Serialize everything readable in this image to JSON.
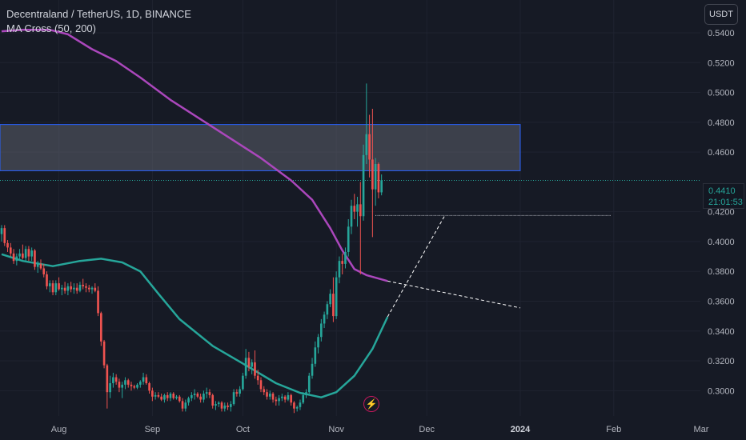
{
  "header": {
    "symbol_line": "Decentraland / TetherUS, 1D, BINANCE",
    "indicator_line": "MA Cross (50, 200)",
    "currency": "USDT"
  },
  "last_price": {
    "value": "0.4410",
    "countdown": "21:01:53"
  },
  "event_icon": "lightning-bolt-icon",
  "colors": {
    "background": "#161a25",
    "up": "#26a69a",
    "down": "#ef5350",
    "ma50": "#26a69a",
    "ma200": "#ab47bc",
    "zone_fill": "#5d606b",
    "zone_border": "#2962ff"
  },
  "chart_data": {
    "type": "candlestick",
    "y_axis": {
      "range": [
        0.283,
        0.562
      ],
      "ticks": [
        "0.5400",
        "0.5200",
        "0.5000",
        "0.4800",
        "0.4600",
        "0.4200",
        "0.4000",
        "0.3800",
        "0.3600",
        "0.3400",
        "0.3200",
        "0.3000"
      ],
      "tick_values": [
        0.54,
        0.52,
        0.5,
        0.48,
        0.46,
        0.42,
        0.4,
        0.38,
        0.36,
        0.34,
        0.32,
        0.3
      ]
    },
    "x_axis": {
      "labels": [
        "Aug",
        "Sep",
        "Oct",
        "Nov",
        "Dec",
        "2024",
        "Feb",
        "Mar"
      ],
      "label_dates": [
        "2023-08-01",
        "2023-09-01",
        "2023-10-01",
        "2023-11-01",
        "2023-12-01",
        "2024-01-01",
        "2024-02-01",
        "2024-03-01"
      ],
      "start_date": "2023-07-13",
      "end_date": "2024-03-01"
    },
    "zone": {
      "from_date": "2023-07-13",
      "to_date": "2024-01-01",
      "low": 0.4475,
      "high": 0.4785
    },
    "last_price_line": 0.441,
    "horizontal_ray": {
      "from_date": "2023-11-14",
      "to_date": "2024-01-31",
      "price": 0.4175
    },
    "projections": [
      {
        "name": "ma50-projection",
        "from": [
          "2023-11-18",
          0.3495
        ],
        "to": [
          "2023-12-07",
          0.4175
        ]
      },
      {
        "name": "ma200-projection",
        "from": [
          "2023-11-18",
          0.3735
        ],
        "to": [
          "2024-01-01",
          0.3555
        ]
      }
    ],
    "series": [
      {
        "name": "MA 200",
        "color": "#ab47bc",
        "points": [
          [
            "2023-07-13",
            0.541
          ],
          [
            "2023-07-20",
            0.542
          ],
          [
            "2023-07-29",
            0.542
          ],
          [
            "2023-08-04",
            0.539
          ],
          [
            "2023-08-12",
            0.529
          ],
          [
            "2023-08-20",
            0.521
          ],
          [
            "2023-08-28",
            0.51
          ],
          [
            "2023-09-07",
            0.495
          ],
          [
            "2023-09-17",
            0.482
          ],
          [
            "2023-09-27",
            0.469
          ],
          [
            "2023-10-07",
            0.456
          ],
          [
            "2023-10-17",
            0.441
          ],
          [
            "2023-10-24",
            0.428
          ],
          [
            "2023-10-30",
            0.409
          ],
          [
            "2023-11-03",
            0.394
          ],
          [
            "2023-11-07",
            0.3815
          ],
          [
            "2023-11-11",
            0.3775
          ],
          [
            "2023-11-18",
            0.3735
          ]
        ]
      },
      {
        "name": "MA 50",
        "color": "#26a69a",
        "points": [
          [
            "2023-07-13",
            0.3915
          ],
          [
            "2023-07-20",
            0.387
          ],
          [
            "2023-07-30",
            0.3835
          ],
          [
            "2023-08-08",
            0.387
          ],
          [
            "2023-08-15",
            0.3885
          ],
          [
            "2023-08-22",
            0.386
          ],
          [
            "2023-08-28",
            0.38
          ],
          [
            "2023-09-03",
            0.365
          ],
          [
            "2023-09-10",
            0.348
          ],
          [
            "2023-09-21",
            0.33
          ],
          [
            "2023-10-02",
            0.317
          ],
          [
            "2023-10-12",
            0.305
          ],
          [
            "2023-10-20",
            0.2985
          ],
          [
            "2023-10-27",
            0.2955
          ],
          [
            "2023-11-01",
            0.299
          ],
          [
            "2023-11-07",
            0.31
          ],
          [
            "2023-11-13",
            0.328
          ],
          [
            "2023-11-18",
            0.3495
          ]
        ]
      }
    ],
    "candles": [
      [
        "2023-07-13",
        0.405,
        0.411,
        0.4,
        0.409
      ],
      [
        "2023-07-14",
        0.409,
        0.411,
        0.397,
        0.399
      ],
      [
        "2023-07-15",
        0.399,
        0.401,
        0.393,
        0.396
      ],
      [
        "2023-07-16",
        0.396,
        0.399,
        0.39,
        0.392
      ],
      [
        "2023-07-17",
        0.392,
        0.395,
        0.385,
        0.387
      ],
      [
        "2023-07-18",
        0.387,
        0.392,
        0.384,
        0.39
      ],
      [
        "2023-07-19",
        0.39,
        0.395,
        0.387,
        0.392
      ],
      [
        "2023-07-20",
        0.392,
        0.398,
        0.388,
        0.389
      ],
      [
        "2023-07-21",
        0.389,
        0.397,
        0.386,
        0.395
      ],
      [
        "2023-07-22",
        0.395,
        0.397,
        0.387,
        0.39
      ],
      [
        "2023-07-23",
        0.39,
        0.396,
        0.387,
        0.394
      ],
      [
        "2023-07-24",
        0.394,
        0.395,
        0.381,
        0.383
      ],
      [
        "2023-07-25",
        0.383,
        0.387,
        0.379,
        0.385
      ],
      [
        "2023-07-26",
        0.385,
        0.388,
        0.381,
        0.382
      ],
      [
        "2023-07-27",
        0.382,
        0.385,
        0.376,
        0.378
      ],
      [
        "2023-07-28",
        0.378,
        0.38,
        0.368,
        0.37
      ],
      [
        "2023-07-29",
        0.37,
        0.374,
        0.366,
        0.372
      ],
      [
        "2023-07-30",
        0.372,
        0.374,
        0.364,
        0.366
      ],
      [
        "2023-07-31",
        0.366,
        0.374,
        0.364,
        0.372
      ],
      [
        "2023-08-01",
        0.372,
        0.376,
        0.367,
        0.368
      ],
      [
        "2023-08-02",
        0.368,
        0.371,
        0.364,
        0.369
      ],
      [
        "2023-08-03",
        0.369,
        0.373,
        0.365,
        0.367
      ],
      [
        "2023-08-04",
        0.367,
        0.372,
        0.364,
        0.37
      ],
      [
        "2023-08-05",
        0.37,
        0.373,
        0.366,
        0.368
      ],
      [
        "2023-08-06",
        0.368,
        0.372,
        0.365,
        0.369
      ],
      [
        "2023-08-07",
        0.369,
        0.372,
        0.365,
        0.367
      ],
      [
        "2023-08-08",
        0.367,
        0.373,
        0.366,
        0.371
      ],
      [
        "2023-08-09",
        0.371,
        0.375,
        0.368,
        0.37
      ],
      [
        "2023-08-10",
        0.37,
        0.372,
        0.366,
        0.369
      ],
      [
        "2023-08-11",
        0.369,
        0.371,
        0.366,
        0.368
      ],
      [
        "2023-08-12",
        0.368,
        0.37,
        0.365,
        0.369
      ],
      [
        "2023-08-13",
        0.369,
        0.372,
        0.366,
        0.367
      ],
      [
        "2023-08-14",
        0.367,
        0.37,
        0.35,
        0.352
      ],
      [
        "2023-08-15",
        0.352,
        0.353,
        0.33,
        0.333
      ],
      [
        "2023-08-16",
        0.333,
        0.334,
        0.315,
        0.317
      ],
      [
        "2023-08-17",
        0.317,
        0.318,
        0.288,
        0.299
      ],
      [
        "2023-08-18",
        0.299,
        0.31,
        0.295,
        0.305
      ],
      [
        "2023-08-19",
        0.305,
        0.312,
        0.302,
        0.309
      ],
      [
        "2023-08-20",
        0.309,
        0.311,
        0.304,
        0.306
      ],
      [
        "2023-08-21",
        0.306,
        0.308,
        0.299,
        0.302
      ],
      [
        "2023-08-22",
        0.302,
        0.306,
        0.295,
        0.304
      ],
      [
        "2023-08-23",
        0.304,
        0.309,
        0.301,
        0.307
      ],
      [
        "2023-08-24",
        0.307,
        0.308,
        0.302,
        0.304
      ],
      [
        "2023-08-25",
        0.304,
        0.306,
        0.3,
        0.303
      ],
      [
        "2023-08-26",
        0.303,
        0.304,
        0.301,
        0.302
      ],
      [
        "2023-08-27",
        0.302,
        0.305,
        0.301,
        0.304
      ],
      [
        "2023-08-28",
        0.304,
        0.307,
        0.302,
        0.306
      ],
      [
        "2023-08-29",
        0.306,
        0.312,
        0.304,
        0.309
      ],
      [
        "2023-08-30",
        0.309,
        0.311,
        0.304,
        0.305
      ],
      [
        "2023-08-31",
        0.305,
        0.306,
        0.298,
        0.3
      ],
      [
        "2023-09-01",
        0.3,
        0.302,
        0.293,
        0.296
      ],
      [
        "2023-09-02",
        0.296,
        0.299,
        0.294,
        0.297
      ],
      [
        "2023-09-03",
        0.297,
        0.299,
        0.295,
        0.296
      ],
      [
        "2023-09-04",
        0.296,
        0.298,
        0.293,
        0.294
      ],
      [
        "2023-09-05",
        0.294,
        0.298,
        0.292,
        0.297
      ],
      [
        "2023-09-06",
        0.297,
        0.299,
        0.293,
        0.295
      ],
      [
        "2023-09-07",
        0.295,
        0.299,
        0.293,
        0.298
      ],
      [
        "2023-09-08",
        0.298,
        0.299,
        0.294,
        0.295
      ],
      [
        "2023-09-09",
        0.295,
        0.297,
        0.294,
        0.296
      ],
      [
        "2023-09-10",
        0.296,
        0.297,
        0.292,
        0.293
      ],
      [
        "2023-09-11",
        0.293,
        0.295,
        0.286,
        0.288
      ],
      [
        "2023-09-12",
        0.288,
        0.294,
        0.286,
        0.292
      ],
      [
        "2023-09-13",
        0.292,
        0.296,
        0.29,
        0.295
      ],
      [
        "2023-09-14",
        0.295,
        0.299,
        0.293,
        0.297
      ],
      [
        "2023-09-15",
        0.297,
        0.301,
        0.294,
        0.298
      ],
      [
        "2023-09-16",
        0.298,
        0.299,
        0.295,
        0.296
      ],
      [
        "2023-09-17",
        0.296,
        0.298,
        0.292,
        0.294
      ],
      [
        "2023-09-18",
        0.294,
        0.3,
        0.292,
        0.298
      ],
      [
        "2023-09-19",
        0.298,
        0.302,
        0.295,
        0.299
      ],
      [
        "2023-09-20",
        0.299,
        0.301,
        0.295,
        0.297
      ],
      [
        "2023-09-21",
        0.297,
        0.298,
        0.288,
        0.29
      ],
      [
        "2023-09-22",
        0.29,
        0.293,
        0.287,
        0.291
      ],
      [
        "2023-09-23",
        0.291,
        0.293,
        0.289,
        0.292
      ],
      [
        "2023-09-24",
        0.292,
        0.293,
        0.286,
        0.288
      ],
      [
        "2023-09-25",
        0.288,
        0.292,
        0.286,
        0.29
      ],
      [
        "2023-09-26",
        0.29,
        0.292,
        0.287,
        0.289
      ],
      [
        "2023-09-27",
        0.289,
        0.293,
        0.286,
        0.291
      ],
      [
        "2023-09-28",
        0.291,
        0.301,
        0.29,
        0.299
      ],
      [
        "2023-09-29",
        0.299,
        0.301,
        0.296,
        0.298
      ],
      [
        "2023-09-30",
        0.298,
        0.303,
        0.296,
        0.301
      ],
      [
        "2023-10-01",
        0.301,
        0.312,
        0.3,
        0.31
      ],
      [
        "2023-10-02",
        0.31,
        0.328,
        0.308,
        0.322
      ],
      [
        "2023-10-03",
        0.322,
        0.326,
        0.313,
        0.316
      ],
      [
        "2023-10-04",
        0.316,
        0.321,
        0.311,
        0.319
      ],
      [
        "2023-10-05",
        0.319,
        0.327,
        0.308,
        0.31
      ],
      [
        "2023-10-06",
        0.31,
        0.314,
        0.304,
        0.307
      ],
      [
        "2023-10-07",
        0.307,
        0.309,
        0.299,
        0.301
      ],
      [
        "2023-10-08",
        0.301,
        0.303,
        0.297,
        0.299
      ],
      [
        "2023-10-09",
        0.299,
        0.301,
        0.294,
        0.296
      ],
      [
        "2023-10-10",
        0.296,
        0.3,
        0.294,
        0.298
      ],
      [
        "2023-10-11",
        0.298,
        0.299,
        0.292,
        0.294
      ],
      [
        "2023-10-12",
        0.294,
        0.296,
        0.29,
        0.293
      ],
      [
        "2023-10-13",
        0.293,
        0.297,
        0.29,
        0.295
      ],
      [
        "2023-10-14",
        0.295,
        0.298,
        0.293,
        0.296
      ],
      [
        "2023-10-15",
        0.296,
        0.297,
        0.292,
        0.294
      ],
      [
        "2023-10-16",
        0.294,
        0.299,
        0.293,
        0.297
      ],
      [
        "2023-10-17",
        0.297,
        0.298,
        0.29,
        0.292
      ],
      [
        "2023-10-18",
        0.292,
        0.293,
        0.285,
        0.288
      ],
      [
        "2023-10-19",
        0.288,
        0.29,
        0.286,
        0.289
      ],
      [
        "2023-10-20",
        0.289,
        0.294,
        0.287,
        0.292
      ],
      [
        "2023-10-21",
        0.292,
        0.299,
        0.291,
        0.297
      ],
      [
        "2023-10-22",
        0.297,
        0.301,
        0.295,
        0.299
      ],
      [
        "2023-10-23",
        0.299,
        0.312,
        0.298,
        0.31
      ],
      [
        "2023-10-24",
        0.31,
        0.322,
        0.308,
        0.318
      ],
      [
        "2023-10-25",
        0.318,
        0.333,
        0.316,
        0.329
      ],
      [
        "2023-10-26",
        0.329,
        0.338,
        0.325,
        0.336
      ],
      [
        "2023-10-27",
        0.336,
        0.348,
        0.333,
        0.345
      ],
      [
        "2023-10-28",
        0.345,
        0.353,
        0.342,
        0.351
      ],
      [
        "2023-10-29",
        0.351,
        0.36,
        0.348,
        0.358
      ],
      [
        "2023-10-30",
        0.358,
        0.368,
        0.356,
        0.365
      ],
      [
        "2023-10-31",
        0.365,
        0.376,
        0.346,
        0.35
      ],
      [
        "2023-11-01",
        0.35,
        0.38,
        0.348,
        0.376
      ],
      [
        "2023-11-02",
        0.376,
        0.39,
        0.372,
        0.387
      ],
      [
        "2023-11-03",
        0.387,
        0.392,
        0.378,
        0.385
      ],
      [
        "2023-11-04",
        0.385,
        0.396,
        0.382,
        0.393
      ],
      [
        "2023-11-05",
        0.393,
        0.415,
        0.39,
        0.41
      ],
      [
        "2023-11-06",
        0.41,
        0.428,
        0.405,
        0.424
      ],
      [
        "2023-11-07",
        0.424,
        0.432,
        0.415,
        0.42
      ],
      [
        "2023-11-08",
        0.42,
        0.43,
        0.41,
        0.425
      ],
      [
        "2023-11-09",
        0.425,
        0.44,
        0.378,
        0.417
      ],
      [
        "2023-11-10",
        0.417,
        0.465,
        0.414,
        0.458
      ],
      [
        "2023-11-11",
        0.458,
        0.506,
        0.452,
        0.472
      ],
      [
        "2023-11-12",
        0.472,
        0.485,
        0.443,
        0.455
      ],
      [
        "2023-11-13",
        0.455,
        0.489,
        0.403,
        0.435
      ],
      [
        "2023-11-14",
        0.435,
        0.456,
        0.424,
        0.452
      ],
      [
        "2023-11-15",
        0.452,
        0.453,
        0.429,
        0.433
      ],
      [
        "2023-11-16",
        0.433,
        0.445,
        0.431,
        0.441
      ]
    ]
  }
}
